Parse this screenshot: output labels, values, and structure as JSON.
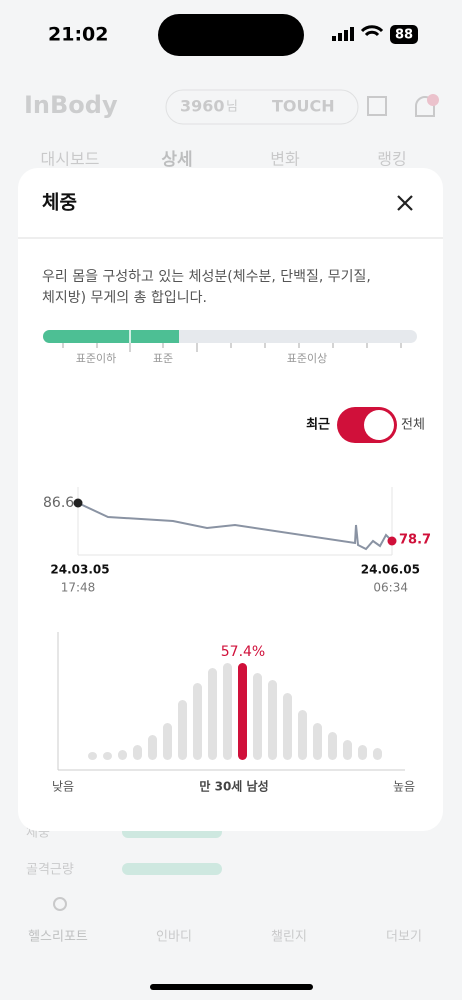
{
  "status_bar": {
    "time": "21:02",
    "battery": "88"
  },
  "header": {
    "logo": "InBody",
    "points": "3960",
    "points_suffix": "님",
    "touch": "TOUCH"
  },
  "tabs": [
    "대시보드",
    "상세",
    "변화",
    "랭킹"
  ],
  "background_items": [
    "체중",
    "골격근량"
  ],
  "nav": [
    "헬스리포트",
    "인바디",
    "챌린지",
    "더보기"
  ],
  "modal": {
    "title": "체중",
    "description": [
      "우리 몸을 구성하고 있는 체성분(체수분, 단백질, 무기질,",
      "체지방) 무게의 총 합입니다."
    ],
    "gauge_labels": [
      "표준이하",
      "표준",
      "표준이상"
    ],
    "toggle": {
      "left": "최근",
      "right": "전체"
    },
    "trend": {
      "start": {
        "value": "86.6",
        "date": "24.03.05",
        "time": "17:48"
      },
      "end": {
        "value": "78.7",
        "date": "24.06.05",
        "time": "06:34"
      }
    },
    "distribution": {
      "percentile": "57.4%",
      "low": "낮음",
      "group": "만 30세 남성",
      "high": "높음"
    }
  }
}
